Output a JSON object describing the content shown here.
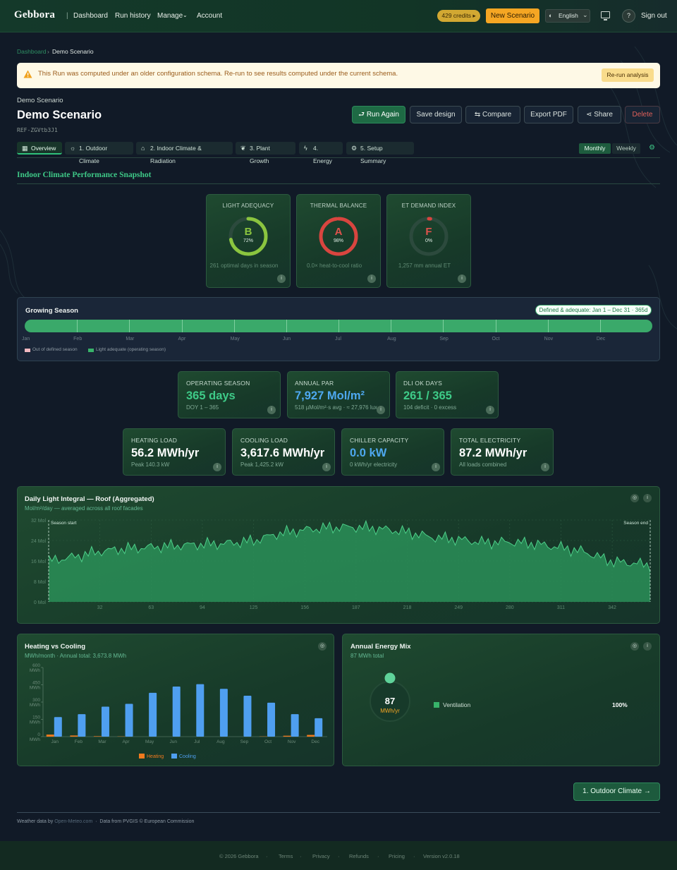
{
  "header": {
    "logo": "Gebbora",
    "nav": [
      "Dashboard",
      "Run history",
      "Manage",
      "Account"
    ],
    "credits": "429 credits",
    "new_scenario": "New Scenario",
    "language": "English",
    "help": "?",
    "sign_out": "Sign out"
  },
  "breadcrumb": {
    "root": "Dashboard",
    "current": "Demo Scenario"
  },
  "alert": {
    "message": "This Run was computed under an older configuration schema. Re-run to see results computed under the current schema.",
    "action": "Re-run analysis"
  },
  "project": {
    "label": "Demo Scenario",
    "title": "Demo Scenario",
    "ref": "REF-ZGVtb3J1",
    "actions": {
      "run_again": "Run Again",
      "save_design": "Save design",
      "compare": "Compare",
      "export_pdf": "Export PDF",
      "share": "Share",
      "delete": "Delete"
    }
  },
  "tabs": [
    "Overview",
    "1. Outdoor Climate",
    "2. Indoor Climate & Radiation",
    "3. Plant Growth",
    "4. Energy",
    "5. Setup Summary"
  ],
  "period": {
    "monthly": "Monthly",
    "weekly": "Weekly"
  },
  "snapshot": {
    "title": "Indoor Climate Performance Snapshot",
    "gauges": [
      {
        "label": "LIGHT ADEQUACY",
        "grade": "B",
        "percent": "72%",
        "value": 0.72,
        "sub": "261 optimal days in season",
        "color": "#8bc53f"
      },
      {
        "label": "THERMAL BALANCE",
        "grade": "A",
        "percent": "98%",
        "value": 0.98,
        "sub": "0.0× heat-to-cool ratio",
        "color": "#d9453f"
      },
      {
        "label": "ET DEMAND INDEX",
        "grade": "F",
        "percent": "0%",
        "value": 0.0,
        "sub": "1,257 mm annual ET",
        "color": "#d9453f"
      }
    ]
  },
  "season": {
    "title": "Growing Season",
    "badge": "Defined & adequate: Jan 1 – Dec 31 · 365d",
    "months": [
      "Jan",
      "Feb",
      "Mar",
      "Apr",
      "May",
      "Jun",
      "Jul",
      "Aug",
      "Sep",
      "Oct",
      "Nov",
      "Dec"
    ],
    "legend": [
      "Out of defined season",
      "Light adequate (operating season)"
    ]
  },
  "stats_row1": [
    {
      "label": "OPERATING SEASON",
      "value": "365 days",
      "sub": "DOY 1 – 365"
    },
    {
      "label": "ANNUAL PAR",
      "value": "7,927 Mol/m²",
      "sub": "518 µMol/m²·s avg · ≈ 27,976 lux"
    },
    {
      "label": "DLI OK DAYS",
      "value": "261 / 365",
      "sub": "104 deficit · 0 excess"
    }
  ],
  "stats_row2": [
    {
      "label": "HEATING LOAD",
      "value": "56.2 MWh/yr",
      "sub": "Peak 140.3 kW"
    },
    {
      "label": "COOLING LOAD",
      "value": "3,617.6 MWh/yr",
      "sub": "Peak 1,425.2 kW"
    },
    {
      "label": "CHILLER CAPACITY",
      "value": "0.0 kW",
      "sub": "0 kWh/yr electricity"
    },
    {
      "label": "TOTAL ELECTRICITY",
      "value": "87.2 MWh/yr",
      "sub": "All loads combined"
    }
  ],
  "dli_chart": {
    "title": "Daily Light Integral — Roof (Aggregated)",
    "subtitle": "Mol/m²/day — averaged across all roof facades",
    "season_start": "Season start",
    "season_end": "Season end",
    "chart_data": {
      "type": "area",
      "ylim": [
        0,
        32
      ],
      "yticks": [
        "32 Mol",
        "24 Mol",
        "16 Mol",
        "8 Mol",
        "0 Mol"
      ],
      "xticks": [
        "32",
        "63",
        "94",
        "125",
        "156",
        "187",
        "218",
        "249",
        "280",
        "311",
        "342"
      ],
      "x": [
        1,
        15,
        32,
        46,
        63,
        77,
        94,
        108,
        125,
        140,
        156,
        170,
        187,
        201,
        218,
        232,
        249,
        263,
        280,
        294,
        311,
        325,
        342,
        356,
        365
      ],
      "values": [
        16,
        17,
        19,
        20,
        21,
        22,
        23,
        23.5,
        24.5,
        27,
        28,
        28.5,
        28.5,
        28,
        27,
        25.5,
        25,
        24,
        24,
        23,
        21,
        19,
        15,
        14.5,
        14
      ]
    }
  },
  "hvc_chart": {
    "title": "Heating vs Cooling",
    "subtitle": "MWh/month · Annual total: 3,673.8 MWh",
    "chart_data": {
      "type": "bar",
      "categories": [
        "Jan",
        "Feb",
        "Mar",
        "Apr",
        "May",
        "Jun",
        "Jul",
        "Aug",
        "Sep",
        "Oct",
        "Nov",
        "Dec"
      ],
      "yticks": [
        "600 MWh",
        "450 MWh",
        "300 MWh",
        "150 MWh",
        "0 MWh"
      ],
      "ylim": [
        0,
        600
      ],
      "series": [
        {
          "name": "Heating",
          "values": [
            18,
            10,
            4,
            2,
            0,
            0,
            0,
            0,
            0,
            2,
            8,
            15
          ],
          "color": "#f07a1e"
        },
        {
          "name": "Cooling",
          "values": [
            170,
            195,
            260,
            285,
            380,
            435,
            455,
            415,
            355,
            295,
            195,
            160
          ],
          "color": "#4f9ff0"
        }
      ]
    }
  },
  "mix_chart": {
    "title": "Annual Energy Mix",
    "subtitle": "87 MWh total",
    "center_value": "87",
    "center_unit": "MWh/yr",
    "chart_data": {
      "type": "pie",
      "categories": [
        "Ventilation"
      ],
      "values": [
        100
      ],
      "labels": [
        "100%"
      ]
    }
  },
  "next_button": "1. Outdoor Climate",
  "credits": {
    "weather_prefix": "Weather data by",
    "weather_source": "Open-Meteo.com",
    "pvgis": "Data from PVGIS © European Commission"
  },
  "footer": [
    "© 2026 Gebbora",
    "Terms",
    "Privacy",
    "Refunds",
    "Pricing",
    "Version v2.0.18"
  ],
  "colors": {
    "accent": "#3ec887",
    "brand_orange": "#f5a623",
    "heating": "#f07a1e",
    "cooling": "#4f9ff0"
  }
}
